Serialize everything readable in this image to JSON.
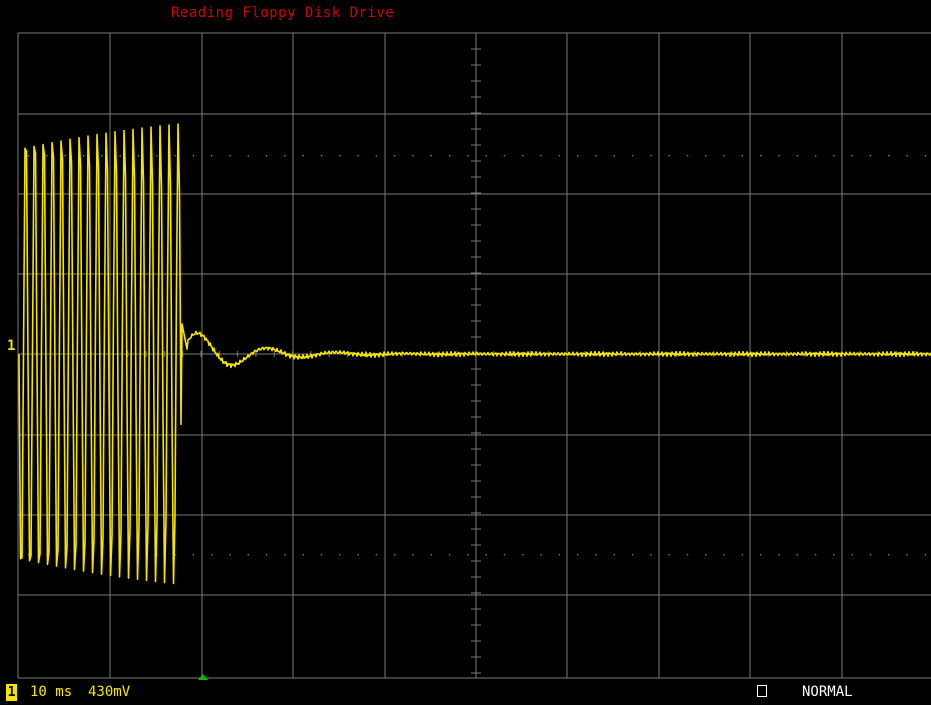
{
  "screen": {
    "title": "Reading Floppy Disk Drive",
    "channel": "1",
    "channel_marker": "1",
    "timebase": "10 ms",
    "volts_per_div": "430mV",
    "trigger_mode": "NORMAL"
  },
  "colors": {
    "trace": "#f5e400",
    "title": "#d00000",
    "grid": "#7a7a7a",
    "background": "#000000",
    "trigger_marker": "#00c000"
  },
  "icons": {
    "trigger": "green-triangle",
    "acquisition": "square-outline"
  }
}
